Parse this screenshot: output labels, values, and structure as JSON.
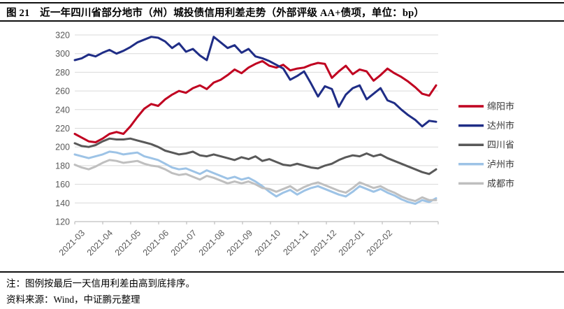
{
  "title": "图 21　近一年四川省部分地市（州）城投债信用利差走势（外部评级 AA+债项，单位：bp）",
  "notes": {
    "note1": "注：图例按最后一天信用利差由高到底排序。",
    "source": "资料来源：Wind，中证鹏元整理"
  },
  "colors": {
    "gridline": "#D9D9D9",
    "axis": "#BFBFBF",
    "tick_label": "#595959",
    "legend_text": "#383838",
    "rule": "#111111"
  },
  "chart_data": {
    "type": "line",
    "title": "近一年四川省部分地市（州）城投债信用利差走势",
    "unit": "bp",
    "ylim": [
      120,
      320
    ],
    "ytick_step": 20,
    "ytick_labels": [
      "320",
      "300",
      "280",
      "260",
      "240",
      "220",
      "200",
      "180",
      "160",
      "140",
      "120"
    ],
    "x_labels": [
      "2021-03",
      "2021-04",
      "2021-05",
      "2021-06",
      "2021-07",
      "2021-08",
      "2021-09",
      "2021-10",
      "2021-11",
      "2021-12",
      "2022-01",
      "2022-02"
    ],
    "x_label_rotation": 45,
    "grid": true,
    "legend_position": "right",
    "series": [
      {
        "name": "绵阳市",
        "color": "#C00020",
        "values": [
          214,
          210,
          206,
          205,
          209,
          214,
          216,
          214,
          222,
          232,
          241,
          246,
          244,
          251,
          256,
          260,
          258,
          263,
          266,
          262,
          269,
          272,
          277,
          283,
          279,
          285,
          289,
          292,
          287,
          285,
          288,
          282,
          284,
          285,
          288,
          290,
          289,
          274,
          281,
          287,
          278,
          283,
          281,
          271,
          277,
          284,
          279,
          275,
          270,
          264,
          257,
          255,
          266
        ]
      },
      {
        "name": "达州市",
        "color": "#1F2D86",
        "values": [
          293,
          295,
          299,
          297,
          301,
          304,
          300,
          303,
          307,
          312,
          315,
          318,
          317,
          313,
          306,
          311,
          302,
          305,
          298,
          293,
          318,
          312,
          306,
          309,
          301,
          305,
          297,
          295,
          292,
          288,
          284,
          272,
          276,
          281,
          268,
          254,
          265,
          262,
          243,
          256,
          263,
          266,
          251,
          257,
          263,
          250,
          247,
          240,
          234,
          229,
          222,
          228,
          227
        ]
      },
      {
        "name": "四川省",
        "color": "#595959",
        "values": [
          204,
          201,
          200,
          202,
          206,
          209,
          208,
          208,
          209,
          207,
          205,
          203,
          200,
          196,
          194,
          192,
          193,
          195,
          191,
          190,
          192,
          190,
          188,
          186,
          189,
          187,
          190,
          185,
          187,
          184,
          181,
          180,
          182,
          180,
          178,
          177,
          180,
          182,
          186,
          189,
          191,
          190,
          193,
          190,
          192,
          188,
          185,
          182,
          179,
          176,
          173,
          171,
          176
        ]
      },
      {
        "name": "泸州市",
        "color": "#9DC3E6",
        "values": [
          192,
          190,
          188,
          190,
          192,
          195,
          194,
          192,
          193,
          194,
          190,
          188,
          186,
          182,
          178,
          176,
          177,
          174,
          171,
          175,
          172,
          169,
          166,
          168,
          165,
          167,
          163,
          158,
          152,
          147,
          151,
          154,
          149,
          153,
          156,
          158,
          155,
          152,
          149,
          147,
          152,
          158,
          155,
          152,
          155,
          151,
          148,
          144,
          141,
          139,
          143,
          141,
          145
        ]
      },
      {
        "name": "成都市",
        "color": "#BFBFBF",
        "values": [
          181,
          178,
          176,
          179,
          183,
          186,
          185,
          183,
          184,
          185,
          182,
          180,
          179,
          176,
          172,
          170,
          171,
          168,
          165,
          169,
          167,
          164,
          161,
          163,
          161,
          163,
          160,
          156,
          155,
          152,
          155,
          158,
          153,
          157,
          160,
          162,
          159,
          156,
          153,
          151,
          156,
          162,
          159,
          156,
          158,
          154,
          151,
          147,
          144,
          142,
          146,
          143,
          143
        ]
      }
    ]
  }
}
